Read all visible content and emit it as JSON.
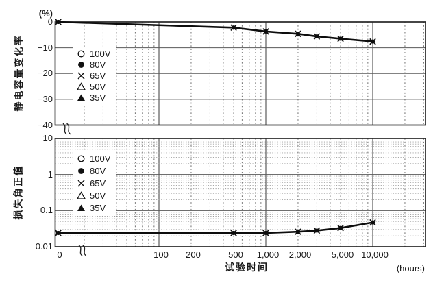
{
  "figure": {
    "x_axis": {
      "title": "试验时间",
      "unit": "(hours)",
      "zero_tick": "0",
      "scale": "log",
      "tick_labels": [
        "100",
        "200",
        "500",
        "1,000",
        "2,000",
        "5,000",
        "10,000"
      ],
      "tick_values": [
        100,
        200,
        500,
        1000,
        2000,
        5000,
        10000
      ],
      "axis_break_symbol": true
    },
    "legend_items": [
      {
        "marker": "circle-open",
        "label": "100V"
      },
      {
        "marker": "circle-filled",
        "label": "80V"
      },
      {
        "marker": "x",
        "label": "65V"
      },
      {
        "marker": "triangle-open",
        "label": "50V"
      },
      {
        "marker": "triangle-filled",
        "label": "35V"
      }
    ],
    "colors": {
      "line": "#0d0d0d",
      "border": "#262626",
      "grid_major": "#3a3a3a",
      "grid_solid": "#5a5a5a",
      "grid_dotted": "#6e6e6e",
      "grid_dotted_minor": "#9a9a9a"
    }
  },
  "chart_data": [
    {
      "type": "line",
      "name": "capacitance-change-rate",
      "ylabel": "静电容量变化率",
      "y_unit": "(%)",
      "y_scale": "linear",
      "ylim": [
        0,
        -40
      ],
      "y_ticks": [
        0,
        -10,
        -20,
        -30,
        -40
      ],
      "y_tick_labels": [
        "0",
        "−10",
        "−20",
        "−30",
        "−40"
      ],
      "series": [
        "100V",
        "80V",
        "65V",
        "50V",
        "35V"
      ],
      "series_overlap": true,
      "x": [
        0,
        500,
        1000,
        2000,
        3000,
        5000,
        10000
      ],
      "y": [
        0,
        -2.2,
        -3.7,
        -4.6,
        -5.6,
        -6.5,
        -7.6
      ]
    },
    {
      "type": "line",
      "name": "loss-angle-tangent",
      "ylabel": "损失角正值",
      "y_unit": "",
      "y_scale": "log",
      "ylim": [
        10,
        0.01
      ],
      "y_ticks": [
        10,
        1,
        0.1,
        0.01
      ],
      "y_tick_labels": [
        "10",
        "1",
        "0.1",
        "0.01"
      ],
      "series": [
        "100V",
        "80V",
        "65V",
        "50V",
        "35V"
      ],
      "series_overlap": true,
      "x": [
        0,
        500,
        1000,
        2000,
        3000,
        5000,
        10000
      ],
      "y": [
        0.024,
        0.024,
        0.024,
        0.026,
        0.028,
        0.033,
        0.047
      ]
    }
  ]
}
